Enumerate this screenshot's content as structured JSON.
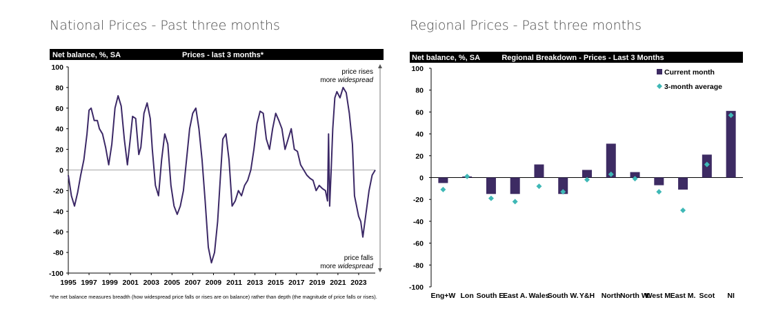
{
  "headings": {
    "national": "National Prices - Past three months",
    "regional": "Regional Prices - Past three months"
  },
  "colors": {
    "line": "#3b2866",
    "bar": "#3d2b63",
    "diamond": "#3fb8b6",
    "header_bg": "#000000"
  },
  "chart_data": [
    {
      "type": "line",
      "title": "Prices - last 3 months*",
      "ylabel": "Net balance, %, SA",
      "ylim": [
        -100,
        100
      ],
      "yticks": [
        100,
        80,
        60,
        40,
        20,
        0,
        -20,
        -40,
        -60,
        -80,
        -100
      ],
      "xlim": [
        1995,
        2024.6
      ],
      "xticks": [
        "1995",
        "1997",
        "1999",
        "2001",
        "2003",
        "2005",
        "2007",
        "2009",
        "2011",
        "2013",
        "2015",
        "2017",
        "2019",
        "2021",
        "2023"
      ],
      "annotations": {
        "top_line1": "price rises",
        "top_line2_prefix": "more ",
        "top_line2_emph": "widespread",
        "bottom_line1": "price falls",
        "bottom_line2_prefix": "more ",
        "bottom_line2_emph": "widespread"
      },
      "footnote": "*the net balance measures breadth (how widespread price falls or rises are on balance)  rather than depth (the magnitude of price falls or rises).",
      "series": [
        {
          "x": [
            1995.0,
            1995.3,
            1995.6,
            1995.9,
            1996.2,
            1996.5,
            1996.8,
            1997.0,
            1997.2,
            1997.5,
            1997.8,
            1998.0,
            1998.3,
            1998.6,
            1998.9,
            1999.2,
            1999.5,
            1999.8,
            2000.1,
            2000.4,
            2000.7,
            2000.95,
            2001.2,
            2001.5,
            2001.8,
            2002.0,
            2002.3,
            2002.6,
            2002.9,
            2003.1,
            2003.4,
            2003.7,
            2004.0,
            2004.3,
            2004.6,
            2004.9,
            2005.2,
            2005.5,
            2005.8,
            2006.1,
            2006.4,
            2006.7,
            2007.0,
            2007.3,
            2007.6,
            2007.9,
            2008.2,
            2008.5,
            2008.8,
            2009.1,
            2009.4,
            2009.65,
            2009.9,
            2010.2,
            2010.5,
            2010.8,
            2011.1,
            2011.4,
            2011.7,
            2012.0,
            2012.3,
            2012.6,
            2012.9,
            2013.2,
            2013.5,
            2013.8,
            2014.1,
            2014.4,
            2014.7,
            2015.0,
            2015.3,
            2015.6,
            2015.9,
            2016.2,
            2016.5,
            2016.8,
            2017.1,
            2017.4,
            2017.7,
            2018.0,
            2018.3,
            2018.6,
            2018.9,
            2019.2,
            2019.5,
            2019.8,
            2020.0,
            2020.1,
            2020.2,
            2020.35,
            2020.5,
            2020.7,
            2020.9,
            2021.2,
            2021.5,
            2021.8,
            2022.1,
            2022.4,
            2022.6,
            2022.8,
            2023.0,
            2023.2,
            2023.4,
            2023.6,
            2023.8,
            2024.0,
            2024.3,
            2024.6
          ],
          "y": [
            -5,
            -25,
            -35,
            -22,
            -5,
            10,
            35,
            58,
            60,
            48,
            48,
            40,
            35,
            22,
            5,
            25,
            60,
            72,
            62,
            30,
            5,
            28,
            52,
            50,
            15,
            22,
            55,
            65,
            50,
            20,
            -15,
            -25,
            10,
            35,
            25,
            -15,
            -35,
            -43,
            -35,
            -20,
            10,
            40,
            55,
            60,
            40,
            10,
            -30,
            -75,
            -90,
            -80,
            -50,
            -10,
            30,
            35,
            10,
            -35,
            -30,
            -20,
            -25,
            -15,
            -10,
            0,
            20,
            45,
            57,
            55,
            30,
            20,
            40,
            55,
            48,
            40,
            20,
            30,
            40,
            20,
            18,
            5,
            0,
            -5,
            -8,
            -10,
            -20,
            -15,
            -18,
            -20,
            -30,
            35,
            -35,
            0,
            40,
            70,
            76,
            70,
            80,
            75,
            55,
            25,
            -25,
            -35,
            -45,
            -50,
            -65,
            -50,
            -35,
            -20,
            -5,
            0
          ]
        }
      ]
    },
    {
      "type": "bar",
      "title": "Regional Breakdown - Prices - Last 3 Months",
      "ylabel": "Net balance, %, SA",
      "ylim": [
        -100,
        100
      ],
      "yticks": [
        100,
        80,
        60,
        40,
        20,
        0,
        -20,
        -40,
        -60,
        -80,
        -100
      ],
      "legend_position": "top-right",
      "categories": [
        "Eng+W",
        "Lon",
        "South E.",
        "East A.",
        "Wales",
        "South W.",
        "Y&H",
        "North",
        "North W.",
        "West M.",
        "East M.",
        "Scot",
        "NI"
      ],
      "series": [
        {
          "name": "Current month",
          "kind": "bar",
          "values": [
            -5,
            1,
            -15,
            -15,
            12,
            -15,
            7,
            31,
            5,
            -7,
            -11,
            21,
            61
          ]
        },
        {
          "name": "3-month average",
          "kind": "diamond",
          "values": [
            -11,
            1,
            -19,
            -22,
            -8,
            -13,
            -2,
            3,
            -1,
            -13,
            -30,
            12,
            57
          ]
        }
      ]
    }
  ]
}
